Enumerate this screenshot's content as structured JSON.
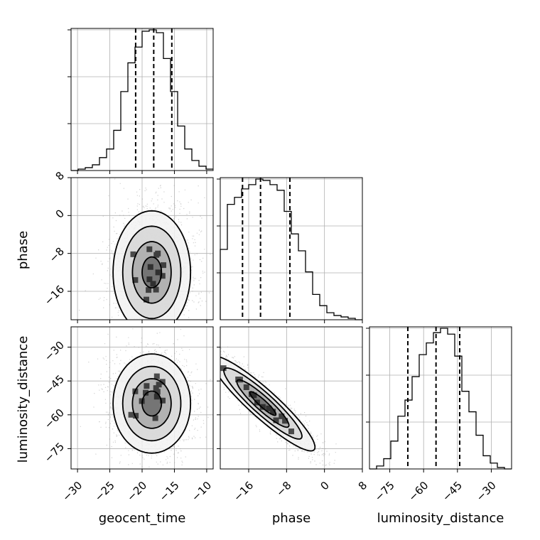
{
  "chart_data": {
    "type": "corner",
    "parameters": [
      "geocent_time",
      "phase",
      "luminosity_distance"
    ],
    "labels": {
      "geocent_time": "geocent_time",
      "phase": "phase",
      "luminosity_distance": "luminosity_distance"
    },
    "grid": true,
    "ranges": {
      "geocent_time": [
        -31,
        -9
      ],
      "phase": [
        -22,
        8
      ],
      "luminosity_distance": [
        -84,
        -21
      ]
    },
    "ticks": {
      "geocent_time": [
        -30,
        -25,
        -20,
        -15,
        -10
      ],
      "phase": [
        -16,
        -8,
        0,
        8
      ],
      "luminosity_distance": [
        -75,
        -60,
        -45,
        -30
      ]
    },
    "tick_labels": {
      "geocent_time": [
        "−30",
        "−25",
        "−20",
        "−15",
        "−10"
      ],
      "phase_x": [
        "−16",
        "−8",
        "0",
        "8"
      ],
      "phase_y": [
        "8",
        "0",
        "−8",
        "−16"
      ],
      "luminosity_distance": [
        "−75",
        "−60",
        "−45",
        "−30"
      ]
    },
    "histograms": {
      "geocent_time": {
        "edges": [
          -31,
          -29.9,
          -28.8,
          -27.7,
          -26.6,
          -25.5,
          -24.4,
          -23.3,
          -22.2,
          -21.1,
          -20,
          -18.9,
          -17.8,
          -16.7,
          -15.6,
          -14.5,
          -13.4,
          -12.3,
          -11.2,
          -10.1,
          -9
        ],
        "counts": [
          0,
          1,
          2,
          4,
          9,
          15,
          28,
          55,
          75,
          86,
          97,
          98,
          96,
          78,
          55,
          31,
          15,
          7,
          3,
          1
        ],
        "quantiles": [
          -21.0,
          -18.2,
          -15.4
        ]
      },
      "phase": {
        "edges": [
          -22,
          -20.5,
          -19,
          -17.5,
          -16,
          -14.5,
          -13,
          -11.5,
          -10,
          -8.5,
          -7,
          -5.5,
          -4,
          -2.5,
          -1,
          0.5,
          2,
          3.5,
          5,
          6.5,
          8
        ],
        "counts": [
          50,
          82,
          87,
          93,
          96,
          100,
          99,
          96,
          92,
          77,
          61,
          49,
          34,
          18,
          10,
          5,
          3,
          2,
          1,
          0
        ],
        "quantiles": [
          -17.3,
          -13.5,
          -7.3
        ]
      },
      "luminosity_distance": {
        "edges": [
          -84,
          -80.85,
          -77.7,
          -74.55,
          -71.4,
          -68.25,
          -65.1,
          -61.95,
          -58.8,
          -55.65,
          -52.5,
          -49.35,
          -46.2,
          -43.05,
          -39.9,
          -36.75,
          -33.6,
          -30.45,
          -27.3,
          -24.15,
          -21
        ],
        "counts": [
          0,
          2,
          7,
          19,
          36,
          47,
          63,
          78,
          86,
          93,
          96,
          92,
          77,
          53,
          39,
          23,
          9,
          4,
          1,
          0
        ],
        "quantiles": [
          -67.0,
          -54.5,
          -44.0
        ]
      }
    },
    "pairs": [
      {
        "x": "geocent_time",
        "y": "phase",
        "center": [
          -18.5,
          -12.0
        ],
        "spread": [
          3.0,
          6.5
        ],
        "correlation": 0.0
      },
      {
        "x": "geocent_time",
        "y": "luminosity_distance",
        "center": [
          -18.5,
          -55.0
        ],
        "spread": [
          3.0,
          11.0
        ],
        "correlation": 0.0
      },
      {
        "x": "phase",
        "y": "luminosity_distance",
        "center": [
          -13.0,
          -55.0
        ],
        "spread": [
          5.5,
          10.5
        ],
        "correlation": -0.92
      }
    ],
    "contour_levels": [
      0.5,
      1.0,
      1.5,
      2.0
    ]
  }
}
